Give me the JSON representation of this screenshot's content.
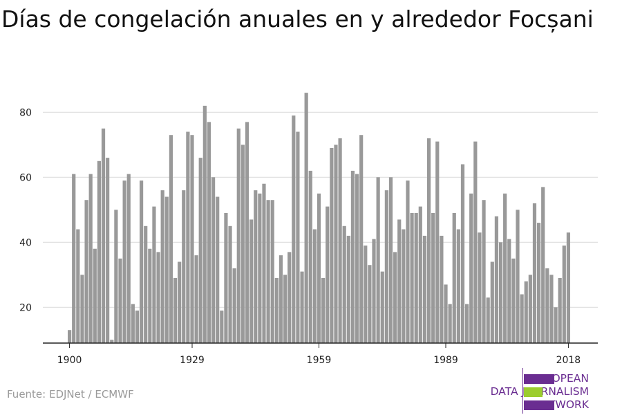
{
  "title": "Días de congelación anuales en y alrededor Focșani",
  "source": "Fuente: EDJNet / ECMWF",
  "logo": {
    "lines": [
      "EUROPEAN",
      "DATA JOURNALISM",
      "NETWORK"
    ],
    "colors": [
      "#6a2d91",
      "#9ccd2e",
      "#6a2d91"
    ]
  },
  "chart_data": {
    "type": "bar",
    "title": "Días de congelación anuales en y alrededor Focșani",
    "xlabel": "",
    "ylabel": "",
    "x_start": 1900,
    "x_end": 2020,
    "xticks": [
      1900,
      1929,
      1959,
      1989,
      2018
    ],
    "yticks": [
      20,
      40,
      60,
      80
    ],
    "ylim": [
      9,
      89
    ],
    "grid": true,
    "bar_color": "#999999",
    "values": [
      13,
      61,
      44,
      30,
      53,
      61,
      38,
      65,
      75,
      66,
      10,
      50,
      35,
      59,
      61,
      21,
      19,
      59,
      45,
      38,
      51,
      37,
      56,
      54,
      73,
      29,
      34,
      56,
      74,
      73,
      36,
      66,
      82,
      77,
      60,
      54,
      19,
      49,
      45,
      32,
      75,
      70,
      77,
      47,
      56,
      55,
      58,
      53,
      53,
      29,
      36,
      30,
      37,
      79,
      74,
      31,
      86,
      62,
      44,
      55,
      29,
      51,
      69,
      70,
      72,
      45,
      42,
      62,
      61,
      73,
      39,
      33,
      41,
      60,
      31,
      56,
      60,
      37,
      47,
      44,
      59,
      49,
      49,
      51,
      42,
      72,
      49,
      71,
      42,
      27,
      21,
      49,
      44,
      64,
      21,
      55,
      71,
      43,
      53,
      23,
      34,
      48,
      40,
      55,
      41,
      35,
      50,
      24,
      28,
      30,
      52,
      46,
      57,
      32,
      30,
      20,
      29,
      39,
      43
    ]
  }
}
